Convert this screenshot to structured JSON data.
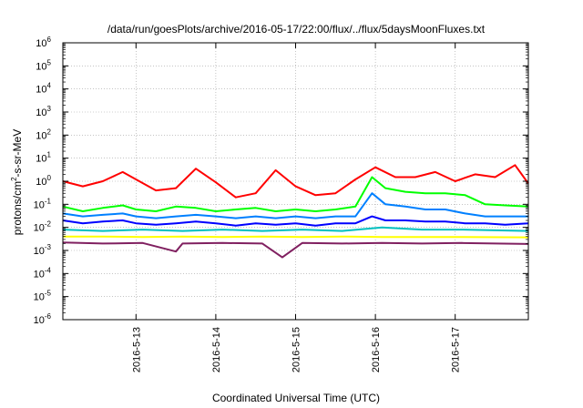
{
  "chart_data": {
    "type": "line",
    "title": "/data/run/goesPlots/archive/2016-05-17/22:00/flux/../flux/5daysMoonFluxes.txt",
    "xlabel": "Coordinated Universal Time (UTC)",
    "ylabel": {
      "base": "protons/cm",
      "sup": "2",
      "rest": "-s-sr-MeV"
    },
    "y_scale": "log",
    "ylim_exponents": [
      -6,
      6
    ],
    "xlim": [
      "2016-05-12 02:00",
      "2016-05-17 22:00"
    ],
    "x_tick_labels": [
      "2016-5-13",
      "2016-5-14",
      "2016-5-15",
      "2016-5-16",
      "2016-5-17"
    ],
    "x_tick_dates": [
      "2016-05-13 00:00",
      "2016-05-14 00:00",
      "2016-05-15 00:00",
      "2016-05-16 00:00",
      "2016-05-17 00:00"
    ],
    "y_tick_labels": [
      {
        "base": "10",
        "exp": "6"
      },
      {
        "base": "10",
        "exp": "5"
      },
      {
        "base": "10",
        "exp": "4"
      },
      {
        "base": "10",
        "exp": "3"
      },
      {
        "base": "10",
        "exp": "2"
      },
      {
        "base": "10",
        "exp": "1"
      },
      {
        "base": "10",
        "exp": "0"
      },
      {
        "base": "10",
        "exp": "-1"
      },
      {
        "base": "10",
        "exp": "-2"
      },
      {
        "base": "10",
        "exp": "-3"
      },
      {
        "base": "10",
        "exp": "-4"
      },
      {
        "base": "10",
        "exp": "-5"
      },
      {
        "base": "10",
        "exp": "-6"
      }
    ],
    "grid": true,
    "legend": "none",
    "series": [
      {
        "color": "#ff0000",
        "x": [
          "2016-05-12 02:00",
          "2016-05-12 08:00",
          "2016-05-12 14:00",
          "2016-05-12 20:00",
          "2016-05-13 00:00",
          "2016-05-13 06:00",
          "2016-05-13 12:00",
          "2016-05-13 18:00",
          "2016-05-14 00:00",
          "2016-05-14 06:00",
          "2016-05-14 12:00",
          "2016-05-14 18:00",
          "2016-05-15 00:00",
          "2016-05-15 06:00",
          "2016-05-15 12:00",
          "2016-05-15 18:00",
          "2016-05-16 00:00",
          "2016-05-16 06:00",
          "2016-05-16 12:00",
          "2016-05-16 18:00",
          "2016-05-17 00:00",
          "2016-05-17 06:00",
          "2016-05-17 12:00",
          "2016-05-17 18:00",
          "2016-05-17 22:00"
        ],
        "y": [
          1.0,
          0.6,
          1.0,
          2.5,
          1.2,
          0.4,
          0.5,
          3.5,
          0.9,
          0.2,
          0.3,
          3.0,
          0.6,
          0.25,
          0.3,
          1.2,
          4.0,
          1.5,
          1.5,
          2.5,
          1.0,
          2.0,
          1.5,
          5.0,
          0.8
        ]
      },
      {
        "color": "#00ff00",
        "x": [
          "2016-05-12 02:00",
          "2016-05-12 08:00",
          "2016-05-12 14:00",
          "2016-05-12 20:00",
          "2016-05-13 00:00",
          "2016-05-13 06:00",
          "2016-05-13 12:00",
          "2016-05-13 18:00",
          "2016-05-14 00:00",
          "2016-05-14 06:00",
          "2016-05-14 12:00",
          "2016-05-14 18:00",
          "2016-05-15 00:00",
          "2016-05-15 06:00",
          "2016-05-15 12:00",
          "2016-05-15 18:00",
          "2016-05-15 23:00",
          "2016-05-16 03:00",
          "2016-05-16 09:00",
          "2016-05-16 15:00",
          "2016-05-16 21:00",
          "2016-05-17 03:00",
          "2016-05-17 09:00",
          "2016-05-17 15:00",
          "2016-05-17 22:00"
        ],
        "y": [
          0.08,
          0.05,
          0.07,
          0.09,
          0.06,
          0.05,
          0.08,
          0.07,
          0.05,
          0.06,
          0.07,
          0.05,
          0.06,
          0.05,
          0.06,
          0.08,
          1.5,
          0.5,
          0.35,
          0.3,
          0.3,
          0.25,
          0.1,
          0.09,
          0.08
        ]
      },
      {
        "color": "#0080ff",
        "x": [
          "2016-05-12 02:00",
          "2016-05-12 08:00",
          "2016-05-12 14:00",
          "2016-05-12 20:00",
          "2016-05-13 00:00",
          "2016-05-13 06:00",
          "2016-05-13 12:00",
          "2016-05-13 18:00",
          "2016-05-14 00:00",
          "2016-05-14 06:00",
          "2016-05-14 12:00",
          "2016-05-14 18:00",
          "2016-05-15 00:00",
          "2016-05-15 06:00",
          "2016-05-15 12:00",
          "2016-05-15 18:00",
          "2016-05-15 23:00",
          "2016-05-16 03:00",
          "2016-05-16 09:00",
          "2016-05-16 15:00",
          "2016-05-16 21:00",
          "2016-05-17 03:00",
          "2016-05-17 09:00",
          "2016-05-17 15:00",
          "2016-05-17 22:00"
        ],
        "y": [
          0.04,
          0.03,
          0.035,
          0.04,
          0.03,
          0.025,
          0.03,
          0.035,
          0.03,
          0.025,
          0.03,
          0.025,
          0.03,
          0.025,
          0.03,
          0.03,
          0.3,
          0.1,
          0.08,
          0.06,
          0.06,
          0.04,
          0.03,
          0.03,
          0.03
        ]
      },
      {
        "color": "#0000ff",
        "x": [
          "2016-05-12 02:00",
          "2016-05-12 08:00",
          "2016-05-12 14:00",
          "2016-05-12 20:00",
          "2016-05-13 00:00",
          "2016-05-13 06:00",
          "2016-05-13 12:00",
          "2016-05-13 18:00",
          "2016-05-14 00:00",
          "2016-05-14 06:00",
          "2016-05-14 12:00",
          "2016-05-14 18:00",
          "2016-05-15 00:00",
          "2016-05-15 06:00",
          "2016-05-15 12:00",
          "2016-05-15 18:00",
          "2016-05-15 23:00",
          "2016-05-16 03:00",
          "2016-05-16 09:00",
          "2016-05-16 15:00",
          "2016-05-16 21:00",
          "2016-05-17 03:00",
          "2016-05-17 09:00",
          "2016-05-17 15:00",
          "2016-05-17 22:00"
        ],
        "y": [
          0.02,
          0.015,
          0.018,
          0.02,
          0.015,
          0.013,
          0.015,
          0.018,
          0.015,
          0.012,
          0.015,
          0.013,
          0.015,
          0.012,
          0.015,
          0.015,
          0.03,
          0.02,
          0.02,
          0.018,
          0.018,
          0.015,
          0.015,
          0.013,
          0.015
        ]
      },
      {
        "color": "#00c0c0",
        "x": [
          "2016-05-12 02:00",
          "2016-05-12 14:00",
          "2016-05-13 02:00",
          "2016-05-13 14:00",
          "2016-05-14 02:00",
          "2016-05-14 14:00",
          "2016-05-15 02:00",
          "2016-05-15 14:00",
          "2016-05-16 02:00",
          "2016-05-16 14:00",
          "2016-05-17 02:00",
          "2016-05-17 22:00"
        ],
        "y": [
          0.008,
          0.007,
          0.008,
          0.007,
          0.008,
          0.007,
          0.008,
          0.007,
          0.01,
          0.008,
          0.008,
          0.007
        ]
      },
      {
        "color": "#ffff00",
        "x": [
          "2016-05-12 02:00",
          "2016-05-12 14:00",
          "2016-05-13 02:00",
          "2016-05-13 14:00",
          "2016-05-14 02:00",
          "2016-05-14 14:00",
          "2016-05-15 02:00",
          "2016-05-15 14:00",
          "2016-05-16 02:00",
          "2016-05-16 14:00",
          "2016-05-17 02:00",
          "2016-05-17 22:00"
        ],
        "y": [
          0.004,
          0.004,
          0.0038,
          0.004,
          0.0038,
          0.004,
          0.0038,
          0.004,
          0.0038,
          0.0038,
          0.0038,
          0.0037
        ]
      },
      {
        "color": "#802060",
        "x": [
          "2016-05-12 02:00",
          "2016-05-12 14:00",
          "2016-05-13 02:00",
          "2016-05-13 12:00",
          "2016-05-13 14:00",
          "2016-05-14 02:00",
          "2016-05-14 14:00",
          "2016-05-14 20:00",
          "2016-05-15 02:00",
          "2016-05-15 14:00",
          "2016-05-16 02:00",
          "2016-05-16 14:00",
          "2016-05-17 02:00",
          "2016-05-17 22:00"
        ],
        "y": [
          0.0022,
          0.002,
          0.0021,
          0.0009,
          0.002,
          0.0021,
          0.002,
          0.0005,
          0.0021,
          0.002,
          0.0021,
          0.002,
          0.0021,
          0.0019
        ]
      }
    ]
  }
}
